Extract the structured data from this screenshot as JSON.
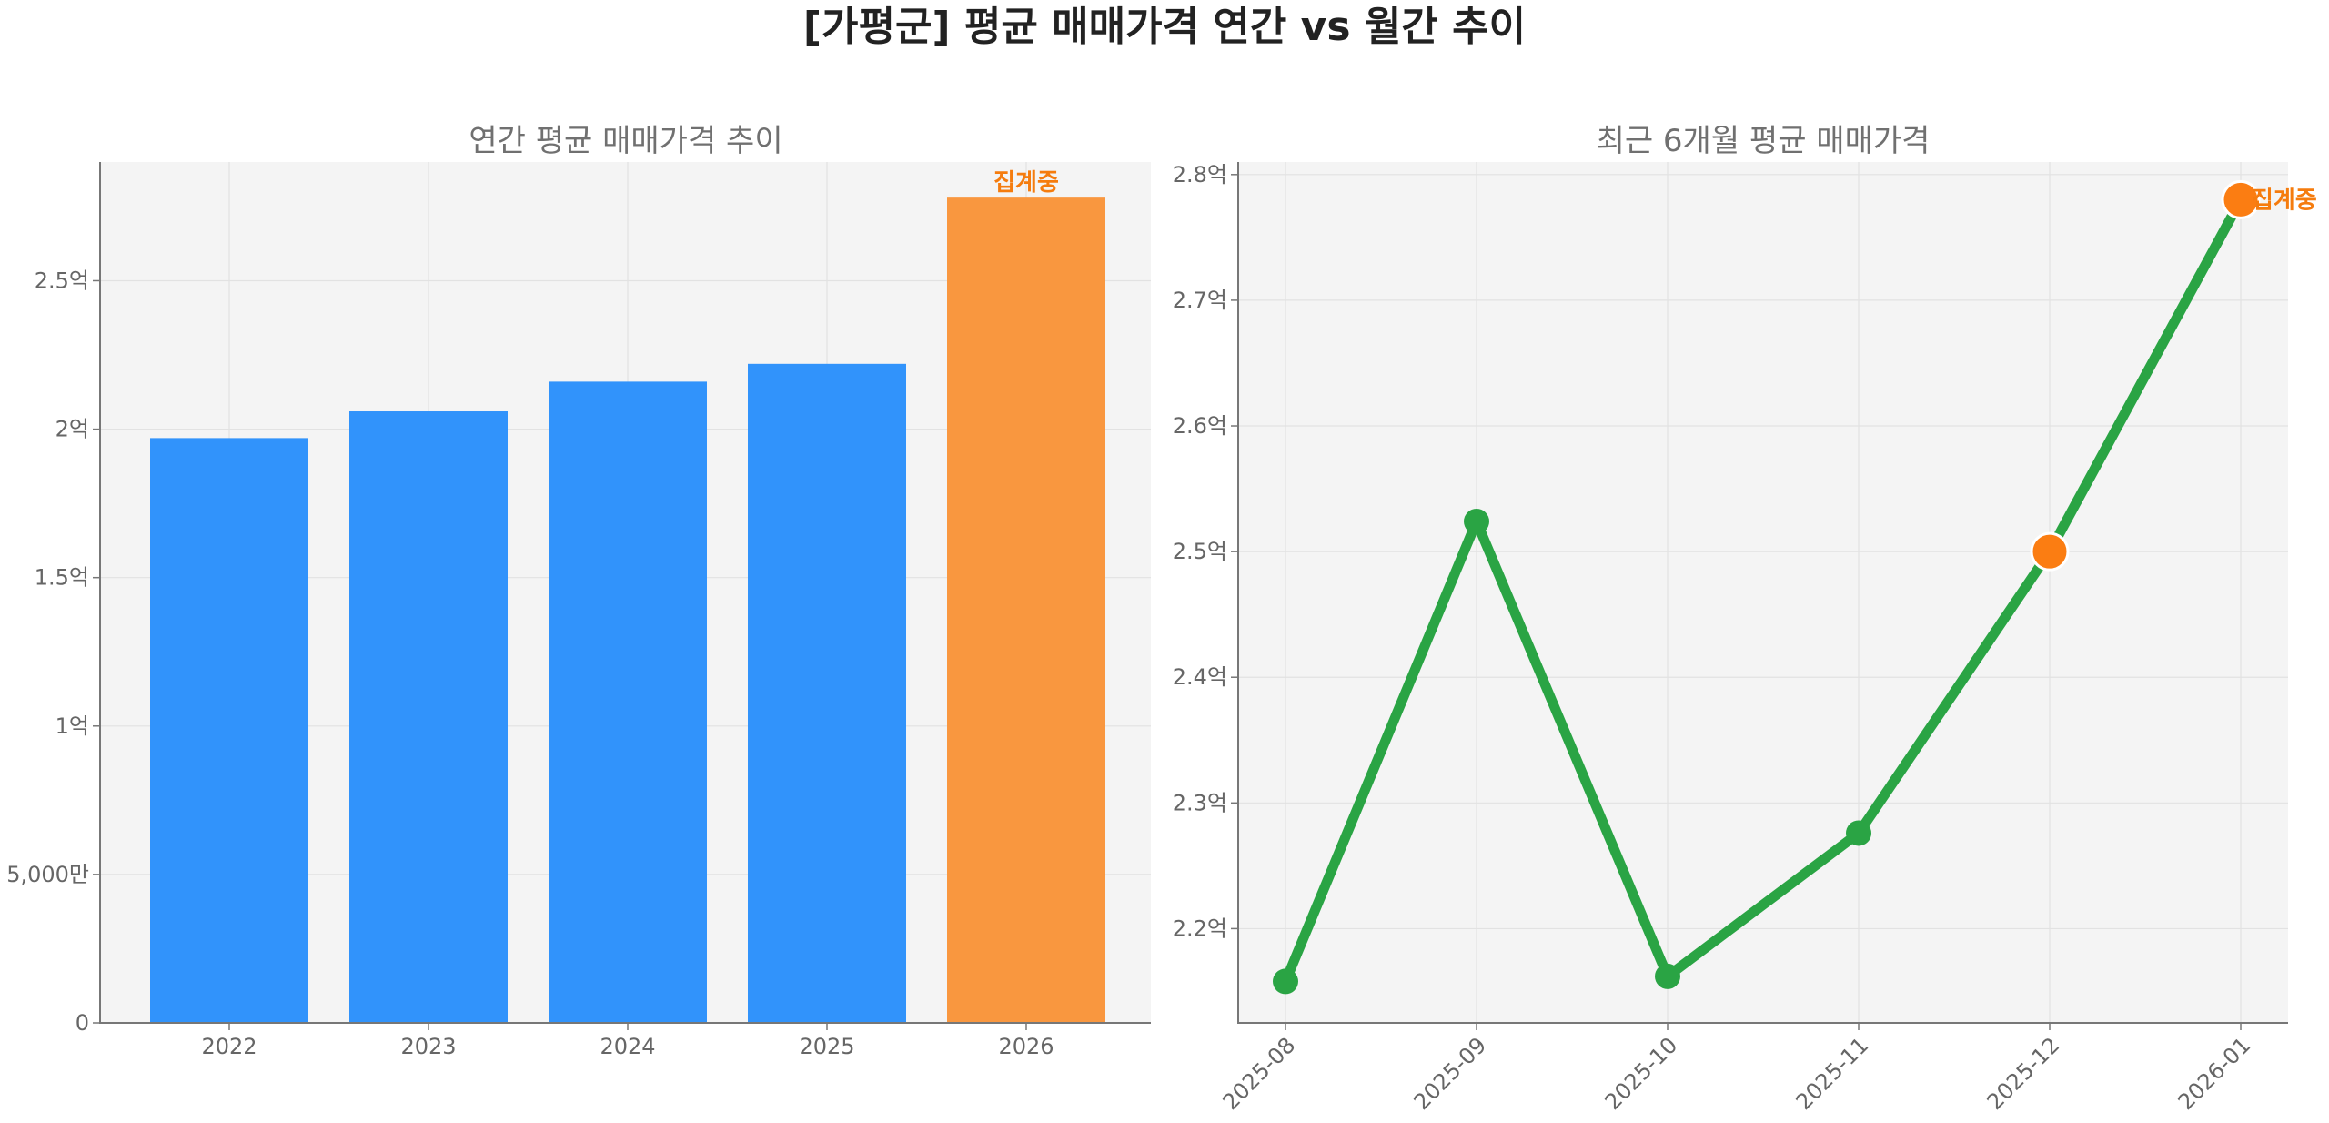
{
  "title": "[가평군] 평균 매매가격 연간 vs 월간 추이",
  "colors": {
    "bar": "#3193fb",
    "bar_highlight": "#f9973f",
    "line": "#2aa444",
    "marker_highlight": "#fb7d12",
    "annotation": "#f57c0e",
    "panel_bg": "#f4f4f4"
  },
  "chart_data": [
    {
      "type": "bar",
      "title": "연간 평균 매매가격 추이",
      "categories": [
        "2022",
        "2023",
        "2024",
        "2025",
        "2026"
      ],
      "values": [
        197000000,
        206000000,
        216000000,
        222000000,
        278000000
      ],
      "highlight_index": 4,
      "annotation": "집계중",
      "ylim": [
        0,
        290000000
      ],
      "yticks": [
        0,
        50000000,
        100000000,
        150000000,
        200000000,
        250000000
      ],
      "ytick_labels": [
        "0",
        "5,000만",
        "1억",
        "1.5억",
        "2억",
        "2.5억"
      ],
      "grid": true
    },
    {
      "type": "line",
      "title": "최근 6개월 평균 매매가격",
      "categories": [
        "2025-08",
        "2025-09",
        "2025-10",
        "2025-11",
        "2025-12",
        "2026-01"
      ],
      "values": [
        215800000,
        252400000,
        216200000,
        227600000,
        250000000,
        278000000
      ],
      "highlight_indices": [
        4,
        5
      ],
      "annotation": "집계중",
      "ylim": [
        212500000,
        281000000
      ],
      "yticks": [
        220000000,
        230000000,
        240000000,
        250000000,
        260000000,
        270000000,
        280000000
      ],
      "ytick_labels": [
        "2.2억",
        "2.3억",
        "2.4억",
        "2.5억",
        "2.6억",
        "2.7억",
        "2.8억"
      ],
      "grid": true
    }
  ]
}
